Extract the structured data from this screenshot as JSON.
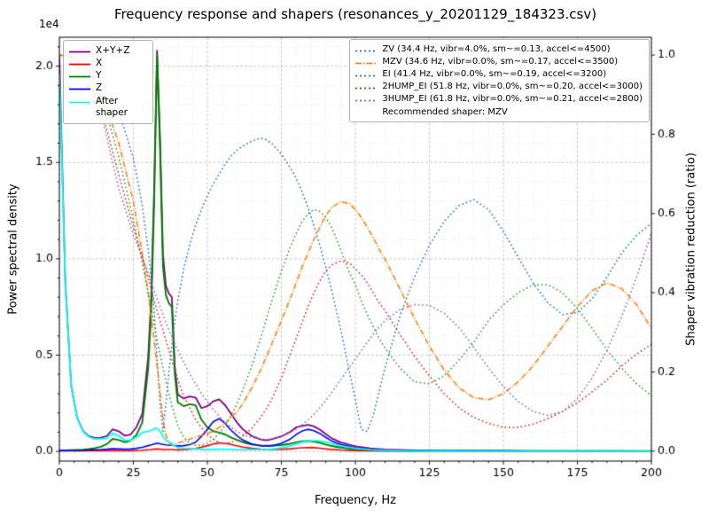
{
  "figure": {
    "title": "Frequency response and shapers (resonances_y_20201129_184323.csv)",
    "xlabel": "Frequency, Hz",
    "ylabel_left": "Power spectral density",
    "ylabel_right": "Shaper vibration reduction (ratio)",
    "offset_text": "1e4"
  },
  "shaper_legend": {
    "note": "Recommended shaper: MZV"
  },
  "chart_data": {
    "type": "line",
    "title": "Frequency response and shapers (resonances_y_20201129_184323.csv)",
    "grid": true,
    "legend_positions": [
      "upper left",
      "upper right"
    ],
    "x_axis": {
      "label": "Frequency, Hz",
      "min": 0,
      "max": 200,
      "tick_values": [
        0,
        25,
        50,
        75,
        100,
        125,
        150,
        175,
        200
      ],
      "tick_labels": [
        "0",
        "25",
        "50",
        "75",
        "100",
        "125",
        "150",
        "175",
        "200"
      ],
      "minor_step": 5
    },
    "y_axis_left": {
      "label": "Power spectral density",
      "multiplier": "1e4",
      "range": [
        -500,
        21500
      ],
      "tick_values": [
        0,
        5000,
        10000,
        15000,
        20000
      ],
      "tick_labels": [
        "0.0",
        "0.5",
        "1.0",
        "1.5",
        "2.0"
      ],
      "minor_step": 1000
    },
    "y_axis_right": {
      "label": "Shaper vibration reduction (ratio)",
      "range": [
        -0.025,
        1.045
      ],
      "tick_values": [
        0,
        0.2,
        0.4,
        0.6,
        0.8,
        1.0
      ],
      "tick_labels": [
        "0.0",
        "0.2",
        "0.4",
        "0.6",
        "0.8",
        "1.0"
      ]
    },
    "x_psd": [
      0,
      2,
      4,
      6,
      8,
      10,
      12,
      14,
      16,
      18,
      20,
      22,
      24,
      26,
      28,
      30,
      31,
      32,
      33,
      34,
      35,
      36,
      37,
      38,
      39,
      40,
      42,
      44,
      46,
      48,
      50,
      52,
      54,
      56,
      58,
      60,
      62,
      65,
      68,
      70,
      72,
      75,
      78,
      80,
      82,
      84,
      86,
      88,
      90,
      92,
      95,
      100,
      105,
      110,
      115,
      120,
      130,
      140,
      150,
      160,
      170,
      180,
      190,
      200
    ],
    "x_shaper": [
      0,
      5,
      10,
      15,
      20,
      25,
      28,
      30,
      32,
      34,
      35,
      36,
      37,
      38,
      39,
      40,
      42,
      44,
      46,
      48,
      50,
      52,
      54,
      56,
      58,
      60,
      62,
      65,
      68,
      70,
      72,
      75,
      78,
      80,
      82,
      84,
      86,
      88,
      90,
      92,
      95,
      98,
      100,
      102,
      104,
      106,
      108,
      110,
      115,
      120,
      125,
      130,
      135,
      140,
      145,
      150,
      155,
      160,
      165,
      170,
      175,
      180,
      185,
      190,
      195,
      200
    ],
    "series": [
      {
        "name": "X+Y+Z",
        "color": "#800080",
        "style": "solid",
        "width": 1.8,
        "axis": "left",
        "x_ref": "x_psd",
        "y": [
          20500,
          8800,
          3400,
          1750,
          1060,
          790,
          700,
          710,
          800,
          1150,
          1050,
          820,
          870,
          1250,
          1950,
          4900,
          7900,
          13500,
          20800,
          16300,
          10200,
          8600,
          8200,
          8000,
          4400,
          2950,
          2750,
          2850,
          2800,
          2250,
          2350,
          2600,
          2700,
          2400,
          1950,
          1500,
          1150,
          800,
          620,
          580,
          640,
          780,
          1020,
          1250,
          1320,
          1380,
          1300,
          1130,
          900,
          680,
          470,
          265,
          160,
          100,
          75,
          60,
          42,
          35,
          30,
          28,
          26,
          25,
          24,
          22
        ]
      },
      {
        "name": "X",
        "color": "#ff0000",
        "style": "solid",
        "width": 1.6,
        "axis": "left",
        "x_ref": "x_psd",
        "y": [
          35,
          35,
          35,
          35,
          35,
          38,
          40,
          42,
          45,
          50,
          48,
          45,
          48,
          55,
          65,
          90,
          100,
          115,
          130,
          120,
          105,
          100,
          95,
          95,
          85,
          80,
          90,
          115,
          155,
          220,
          300,
          390,
          440,
          420,
          360,
          290,
          225,
          160,
          120,
          105,
          105,
          115,
          140,
          165,
          190,
          205,
          195,
          170,
          135,
          105,
          75,
          45,
          32,
          25,
          22,
          20,
          16,
          14,
          13,
          12,
          12,
          11,
          11,
          10
        ]
      },
      {
        "name": "Y",
        "color": "#008000",
        "style": "solid",
        "width": 1.9,
        "axis": "left",
        "x_ref": "x_psd",
        "y": [
          60,
          60,
          65,
          75,
          90,
          120,
          170,
          240,
          380,
          650,
          600,
          480,
          560,
          850,
          1500,
          4300,
          7200,
          12800,
          20600,
          15800,
          9600,
          8100,
          7700,
          7500,
          4000,
          2550,
          2350,
          2450,
          2400,
          1650,
          1250,
          1050,
          980,
          880,
          730,
          600,
          480,
          360,
          310,
          295,
          305,
          330,
          400,
          470,
          530,
          550,
          510,
          450,
          360,
          280,
          200,
          120,
          75,
          50,
          40,
          32,
          24,
          20,
          18,
          16,
          16,
          15,
          15,
          14
        ]
      },
      {
        "name": "Z",
        "color": "#0000ff",
        "style": "solid",
        "width": 1.6,
        "axis": "left",
        "x_ref": "x_psd",
        "y": [
          45,
          48,
          50,
          55,
          62,
          72,
          82,
          95,
          115,
          145,
          135,
          120,
          130,
          160,
          210,
          300,
          340,
          390,
          430,
          400,
          360,
          340,
          330,
          320,
          300,
          290,
          300,
          350,
          480,
          780,
          1150,
          1550,
          1700,
          1450,
          1100,
          820,
          590,
          390,
          290,
          270,
          300,
          420,
          640,
          880,
          1060,
          1150,
          1080,
          930,
          730,
          540,
          360,
          185,
          110,
          68,
          48,
          38,
          28,
          24,
          22,
          20,
          19,
          18,
          17,
          16
        ]
      },
      {
        "name": "ZV (34.4 Hz, vibr=4.0%, sm~=0.13, accel<=4500)",
        "color": "#1f77b4",
        "style": "dotted",
        "width": 1.5,
        "axis": "right",
        "x_ref": "x_shaper",
        "y": [
          1.0,
          0.995,
          0.975,
          0.93,
          0.86,
          0.74,
          0.62,
          0.51,
          0.36,
          0.12,
          0.05,
          0.12,
          0.2,
          0.27,
          0.33,
          0.38,
          0.46,
          0.52,
          0.57,
          0.61,
          0.645,
          0.675,
          0.7,
          0.725,
          0.745,
          0.76,
          0.77,
          0.783,
          0.79,
          0.786,
          0.775,
          0.75,
          0.715,
          0.69,
          0.655,
          0.615,
          0.57,
          0.52,
          0.465,
          0.405,
          0.31,
          0.2,
          0.13,
          0.055,
          0.05,
          0.09,
          0.15,
          0.21,
          0.34,
          0.44,
          0.52,
          0.58,
          0.62,
          0.635,
          0.61,
          0.555,
          0.49,
          0.425,
          0.375,
          0.345,
          0.35,
          0.385,
          0.44,
          0.5,
          0.545,
          0.575
        ]
      },
      {
        "name": "MZV (34.6 Hz, vibr=0.0%, sm~=0.17, accel<=3500)",
        "color": "#ff7f0e",
        "style": "dashdot",
        "width": 1.6,
        "axis": "right",
        "x_ref": "x_shaper",
        "y": [
          1.0,
          0.997,
          0.955,
          0.885,
          0.78,
          0.63,
          0.5,
          0.4,
          0.28,
          0.15,
          0.08,
          0.04,
          0.022,
          0.015,
          0.017,
          0.02,
          0.025,
          0.03,
          0.035,
          0.04,
          0.045,
          0.05,
          0.06,
          0.07,
          0.085,
          0.1,
          0.12,
          0.16,
          0.205,
          0.24,
          0.275,
          0.33,
          0.385,
          0.425,
          0.465,
          0.5,
          0.535,
          0.565,
          0.595,
          0.615,
          0.63,
          0.625,
          0.61,
          0.59,
          0.565,
          0.54,
          0.51,
          0.485,
          0.41,
          0.335,
          0.265,
          0.205,
          0.16,
          0.135,
          0.13,
          0.145,
          0.175,
          0.215,
          0.265,
          0.315,
          0.365,
          0.405,
          0.425,
          0.41,
          0.37,
          0.31
        ]
      },
      {
        "name": "EI (41.4 Hz, vibr=0.0%, sm~=0.19, accel<=3200)",
        "color": "#2ca02c",
        "style": "dotted",
        "width": 1.5,
        "axis": "right",
        "x_ref": "x_shaper",
        "y": [
          1.0,
          0.99,
          0.955,
          0.875,
          0.745,
          0.585,
          0.475,
          0.4,
          0.32,
          0.245,
          0.21,
          0.175,
          0.145,
          0.115,
          0.09,
          0.065,
          0.035,
          0.02,
          0.015,
          0.015,
          0.02,
          0.03,
          0.045,
          0.065,
          0.09,
          0.12,
          0.155,
          0.215,
          0.285,
          0.335,
          0.385,
          0.455,
          0.515,
          0.55,
          0.58,
          0.6,
          0.61,
          0.605,
          0.59,
          0.565,
          0.51,
          0.45,
          0.42,
          0.38,
          0.345,
          0.315,
          0.285,
          0.26,
          0.21,
          0.175,
          0.17,
          0.19,
          0.23,
          0.275,
          0.33,
          0.37,
          0.4,
          0.42,
          0.42,
          0.4,
          0.36,
          0.31,
          0.255,
          0.21,
          0.17,
          0.14
        ]
      },
      {
        "name": "2HUMP_EI (51.8 Hz, vibr=0.0%, sm~=0.20, accel<=3000)",
        "color": "#d62728",
        "style": "dotted",
        "width": 1.5,
        "axis": "right",
        "x_ref": "x_shaper",
        "y": [
          1.0,
          0.985,
          0.935,
          0.84,
          0.7,
          0.565,
          0.49,
          0.44,
          0.38,
          0.33,
          0.305,
          0.28,
          0.255,
          0.23,
          0.205,
          0.18,
          0.14,
          0.11,
          0.08,
          0.06,
          0.042,
          0.03,
          0.022,
          0.02,
          0.022,
          0.028,
          0.038,
          0.058,
          0.085,
          0.108,
          0.135,
          0.185,
          0.245,
          0.285,
          0.325,
          0.365,
          0.4,
          0.43,
          0.455,
          0.47,
          0.48,
          0.475,
          0.46,
          0.445,
          0.425,
          0.4,
          0.375,
          0.355,
          0.295,
          0.24,
          0.19,
          0.145,
          0.11,
          0.085,
          0.07,
          0.06,
          0.06,
          0.068,
          0.082,
          0.1,
          0.122,
          0.15,
          0.18,
          0.215,
          0.245,
          0.27
        ]
      },
      {
        "name": "3HUMP_EI (61.8 Hz, vibr=0.0%, sm~=0.21, accel<=2800)",
        "color": "#9467bd",
        "style": "dotted",
        "width": 1.5,
        "axis": "right",
        "x_ref": "x_shaper",
        "y": [
          1.0,
          0.98,
          0.92,
          0.825,
          0.665,
          0.545,
          0.49,
          0.45,
          0.405,
          0.365,
          0.345,
          0.325,
          0.305,
          0.29,
          0.27,
          0.255,
          0.225,
          0.195,
          0.17,
          0.145,
          0.125,
          0.105,
          0.088,
          0.073,
          0.06,
          0.05,
          0.042,
          0.034,
          0.03,
          0.029,
          0.031,
          0.037,
          0.047,
          0.056,
          0.067,
          0.079,
          0.093,
          0.11,
          0.128,
          0.148,
          0.18,
          0.212,
          0.233,
          0.254,
          0.275,
          0.295,
          0.313,
          0.33,
          0.357,
          0.37,
          0.368,
          0.348,
          0.312,
          0.262,
          0.21,
          0.163,
          0.125,
          0.1,
          0.09,
          0.1,
          0.133,
          0.185,
          0.255,
          0.34,
          0.44,
          0.55
        ]
      },
      {
        "name": "After shaper",
        "color": "#00ffff",
        "style": "solid",
        "width": 1.8,
        "axis": "left",
        "x_ref": "x_psd",
        "y": [
          19600,
          8700,
          3380,
          1730,
          1040,
          755,
          650,
          640,
          690,
          940,
          820,
          590,
          575,
          740,
          975,
          1050,
          1100,
          1180,
          1200,
          1050,
          800,
          600,
          480,
          420,
          280,
          200,
          160,
          150,
          140,
          110,
          105,
          110,
          120,
          115,
          105,
          95,
          90,
          90,
          95,
          105,
          130,
          185,
          290,
          390,
          480,
          540,
          560,
          540,
          480,
          400,
          290,
          160,
          95,
          55,
          38,
          28,
          18,
          14,
          12,
          11,
          10,
          10,
          10,
          9
        ]
      }
    ]
  }
}
